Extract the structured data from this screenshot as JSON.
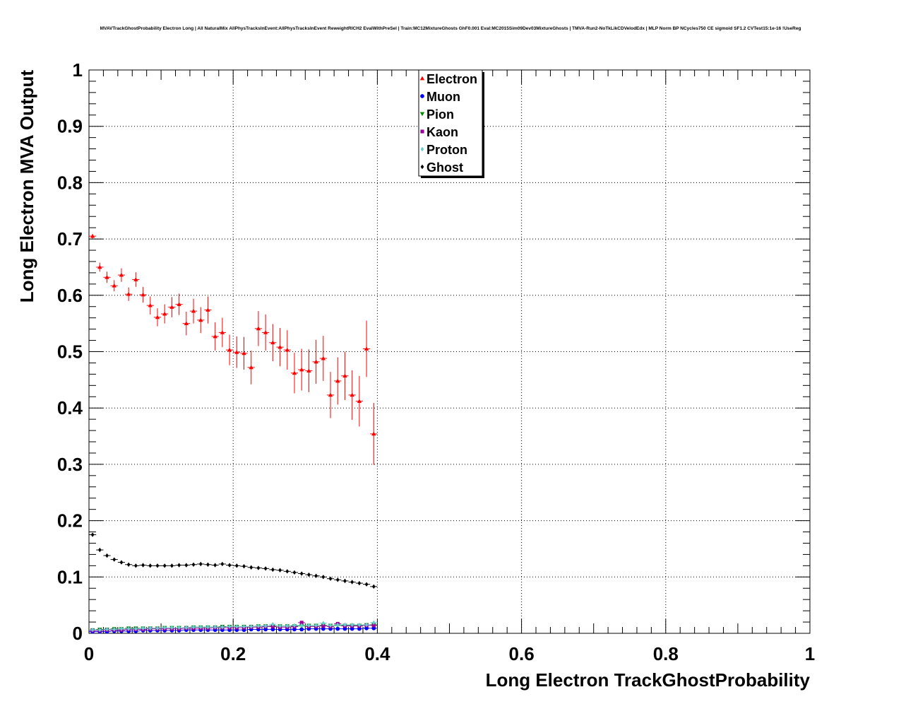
{
  "chart_data": {
    "type": "scatter",
    "title": "MVAVTrackGhostProbability Electron Long | All NaturalMix AllPhysTracksInEvent:AllPhysTracksInEvent ReweightRICH2 EvalWithPreSel | Train:MC12MixtureGhosts GhF0.001 Eval:MC2015Sim09Dev03MixtureGhosts | TMVA-Run2-NoTkLikCDVelodEdx | MLP Norm BP NCycles750 CE sigmoid SF1.2 CVTest15:1e-16 !UseReg",
    "xlabel": "Long Electron TrackGhostProbability",
    "ylabel": "Long Electron MVA Output",
    "xlim": [
      0,
      1
    ],
    "ylim": [
      0,
      1
    ],
    "xticks": [
      "0",
      "0.2",
      "0.4",
      "0.6",
      "0.8",
      "1"
    ],
    "yticks": [
      "0",
      "0.1",
      "0.2",
      "0.3",
      "0.4",
      "0.5",
      "0.6",
      "0.7",
      "0.8",
      "0.9",
      "1"
    ],
    "grid": true,
    "legend_position": "top-center",
    "x": [
      0.005,
      0.015,
      0.025,
      0.035,
      0.045,
      0.055,
      0.065,
      0.075,
      0.085,
      0.095,
      0.105,
      0.115,
      0.125,
      0.135,
      0.145,
      0.155,
      0.165,
      0.175,
      0.185,
      0.195,
      0.205,
      0.215,
      0.225,
      0.235,
      0.245,
      0.255,
      0.265,
      0.275,
      0.285,
      0.295,
      0.305,
      0.315,
      0.325,
      0.335,
      0.345,
      0.355,
      0.365,
      0.375,
      0.385,
      0.395
    ],
    "series": [
      {
        "name": "Electron",
        "color": "#ff0000",
        "marker": "triangle-up",
        "values": [
          0.705,
          0.65,
          0.632,
          0.617,
          0.636,
          0.602,
          0.628,
          0.601,
          0.582,
          0.561,
          0.567,
          0.579,
          0.584,
          0.55,
          0.572,
          0.556,
          0.574,
          0.527,
          0.534,
          0.503,
          0.499,
          0.497,
          0.472,
          0.541,
          0.534,
          0.516,
          0.508,
          0.503,
          0.462,
          0.468,
          0.466,
          0.482,
          0.488,
          0.423,
          0.448,
          0.457,
          0.423,
          0.412,
          0.505,
          0.354
        ],
        "errors": [
          0.004,
          0.008,
          0.01,
          0.01,
          0.012,
          0.012,
          0.013,
          0.014,
          0.016,
          0.016,
          0.017,
          0.018,
          0.019,
          0.021,
          0.022,
          0.023,
          0.024,
          0.025,
          0.026,
          0.027,
          0.028,
          0.029,
          0.03,
          0.031,
          0.032,
          0.033,
          0.034,
          0.035,
          0.036,
          0.037,
          0.038,
          0.039,
          0.04,
          0.041,
          0.042,
          0.043,
          0.044,
          0.045,
          0.05,
          0.055
        ]
      },
      {
        "name": "Muon",
        "color": "#0000ff",
        "marker": "circle",
        "values": [
          0.003,
          0.003,
          0.003,
          0.004,
          0.004,
          0.004,
          0.004,
          0.005,
          0.005,
          0.005,
          0.005,
          0.005,
          0.005,
          0.006,
          0.006,
          0.006,
          0.006,
          0.006,
          0.006,
          0.006,
          0.006,
          0.006,
          0.007,
          0.007,
          0.007,
          0.007,
          0.007,
          0.007,
          0.007,
          0.007,
          0.008,
          0.008,
          0.008,
          0.008,
          0.008,
          0.008,
          0.008,
          0.008,
          0.009,
          0.009
        ]
      },
      {
        "name": "Pion",
        "color": "#008800",
        "marker": "triangle-down",
        "values": [
          0.006,
          0.007,
          0.007,
          0.008,
          0.008,
          0.009,
          0.009,
          0.009,
          0.009,
          0.009,
          0.01,
          0.01,
          0.01,
          0.01,
          0.011,
          0.011,
          0.011,
          0.011,
          0.012,
          0.012,
          0.012,
          0.012,
          0.012,
          0.013,
          0.013,
          0.013,
          0.013,
          0.013,
          0.013,
          0.013,
          0.014,
          0.014,
          0.014,
          0.014,
          0.014,
          0.014,
          0.014,
          0.014,
          0.015,
          0.015
        ]
      },
      {
        "name": "Kaon",
        "color": "#990099",
        "marker": "square",
        "values": [
          0.005,
          0.005,
          0.006,
          0.006,
          0.006,
          0.007,
          0.007,
          0.007,
          0.008,
          0.008,
          0.008,
          0.008,
          0.008,
          0.009,
          0.009,
          0.009,
          0.009,
          0.01,
          0.01,
          0.01,
          0.01,
          0.01,
          0.011,
          0.011,
          0.012,
          0.012,
          0.011,
          0.011,
          0.012,
          0.019,
          0.012,
          0.012,
          0.013,
          0.012,
          0.017,
          0.013,
          0.013,
          0.013,
          0.014,
          0.014
        ]
      },
      {
        "name": "Proton",
        "color": "#66cccc",
        "marker": "diamond",
        "values": [
          0.006,
          0.006,
          0.007,
          0.007,
          0.008,
          0.008,
          0.008,
          0.009,
          0.009,
          0.009,
          0.01,
          0.01,
          0.01,
          0.01,
          0.011,
          0.011,
          0.011,
          0.011,
          0.011,
          0.012,
          0.012,
          0.012,
          0.012,
          0.013,
          0.013,
          0.016,
          0.013,
          0.013,
          0.014,
          0.014,
          0.014,
          0.014,
          0.018,
          0.014,
          0.015,
          0.015,
          0.015,
          0.015,
          0.015,
          0.019
        ]
      },
      {
        "name": "Ghost",
        "color": "#000000",
        "marker": "diamond",
        "values": [
          0.175,
          0.148,
          0.138,
          0.131,
          0.126,
          0.122,
          0.12,
          0.121,
          0.12,
          0.12,
          0.12,
          0.12,
          0.121,
          0.121,
          0.122,
          0.123,
          0.122,
          0.121,
          0.123,
          0.121,
          0.12,
          0.119,
          0.117,
          0.116,
          0.115,
          0.113,
          0.112,
          0.11,
          0.108,
          0.106,
          0.104,
          0.102,
          0.1,
          0.097,
          0.095,
          0.093,
          0.091,
          0.089,
          0.087,
          0.083
        ]
      }
    ]
  }
}
